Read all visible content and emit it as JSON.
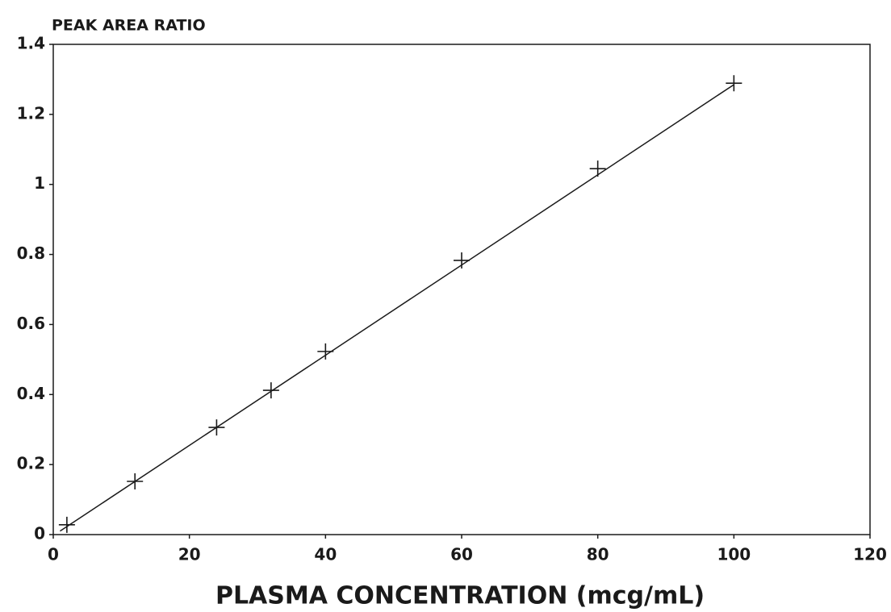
{
  "chart_data": {
    "type": "scatter",
    "y_title": "PEAK AREA RATIO",
    "x_title": "PLASMA CONCENTRATION (mcg/mL)",
    "series": [
      {
        "marker": "plus",
        "color": "#1a1a1a",
        "x": [
          2,
          12,
          24,
          32,
          40,
          60,
          80,
          100
        ],
        "values": [
          0.028,
          0.152,
          0.306,
          0.412,
          0.523,
          0.783,
          1.045,
          1.289
        ]
      },
      {
        "marker": "line",
        "color": "#1a1a1a",
        "x": [
          1,
          100
        ],
        "values": [
          0.01,
          1.285
        ]
      }
    ],
    "xlim": [
      0,
      120
    ],
    "xticks": [
      0,
      20,
      40,
      60,
      80,
      100,
      120
    ],
    "ylim": [
      0,
      1.4
    ],
    "yticks": [
      0,
      0.2,
      0.4,
      0.6,
      0.8,
      1,
      1.2,
      1.4
    ],
    "grid": false
  }
}
